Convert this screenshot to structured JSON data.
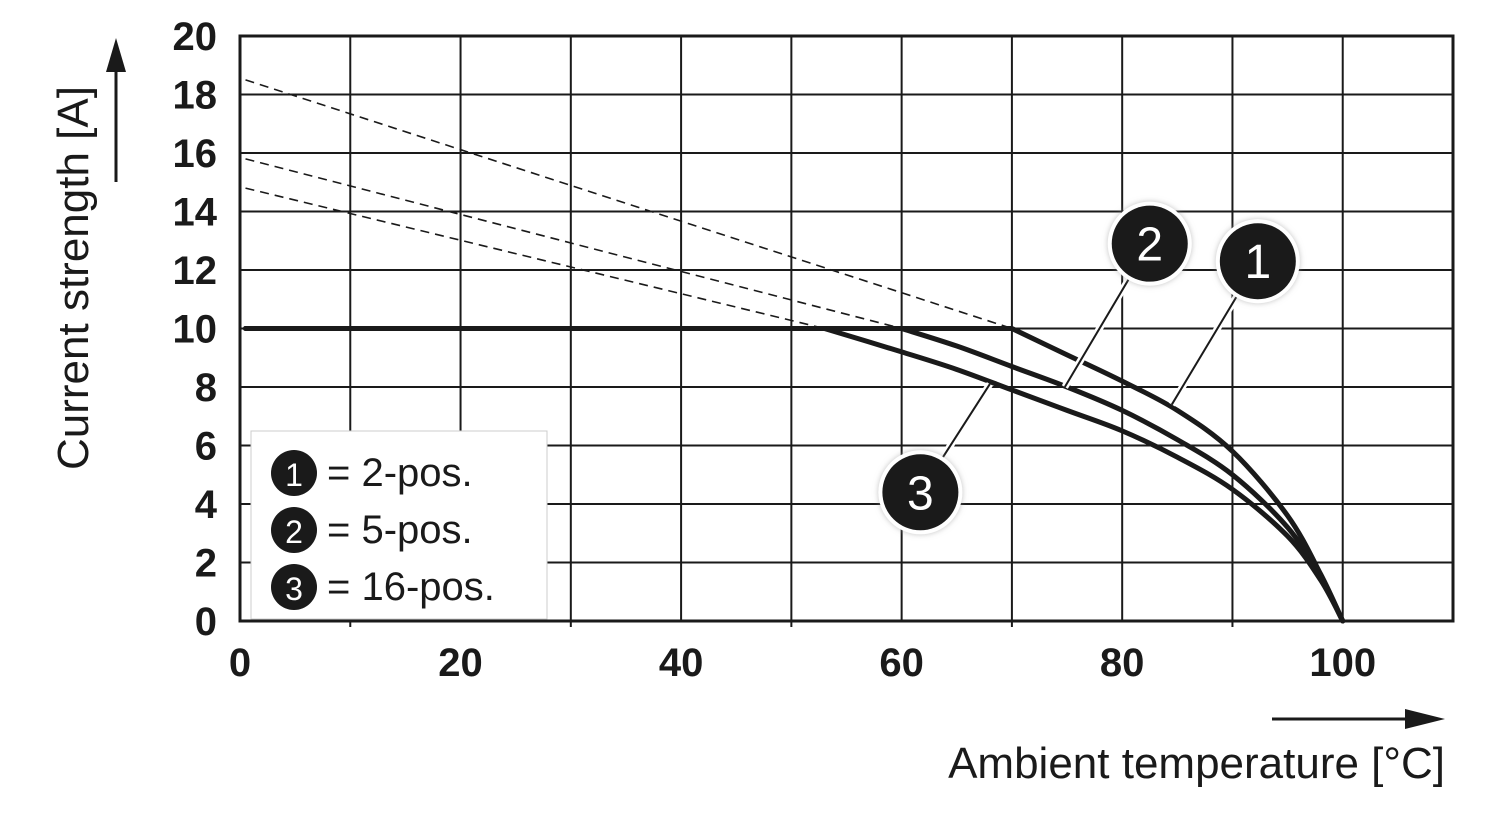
{
  "chart_data": {
    "type": "line",
    "xlabel": "Ambient temperature [°C]",
    "ylabel": "Current strength [A]",
    "xlim": [
      0,
      110
    ],
    "ylim": [
      0,
      20
    ],
    "x_ticks": [
      "0",
      "20",
      "40",
      "60",
      "80",
      "100"
    ],
    "y_ticks": [
      "0",
      "2",
      "4",
      "6",
      "8",
      "10",
      "12",
      "14",
      "16",
      "18",
      "20"
    ],
    "grid": true,
    "legend_position": "bottom-left",
    "series": [
      {
        "id": "1",
        "name": "2-pos.",
        "style": "solid",
        "points": [
          [
            0.5,
            10
          ],
          [
            70,
            10
          ],
          [
            75,
            9.1
          ],
          [
            80,
            8.2
          ],
          [
            85,
            7.2
          ],
          [
            90,
            5.8
          ],
          [
            95,
            3.6
          ],
          [
            98,
            1.6
          ],
          [
            100,
            0
          ]
        ]
      },
      {
        "id": "2",
        "name": "5-pos.",
        "style": "solid",
        "points": [
          [
            0.5,
            10
          ],
          [
            60,
            10
          ],
          [
            65,
            9.4
          ],
          [
            70,
            8.7
          ],
          [
            75,
            8.0
          ],
          [
            80,
            7.2
          ],
          [
            85,
            6.2
          ],
          [
            90,
            5.0
          ],
          [
            95,
            3.2
          ],
          [
            98,
            1.5
          ],
          [
            100,
            0
          ]
        ]
      },
      {
        "id": "3",
        "name": "16-pos.",
        "style": "solid",
        "points": [
          [
            0.5,
            10
          ],
          [
            53,
            10
          ],
          [
            60,
            9.2
          ],
          [
            65,
            8.6
          ],
          [
            70,
            7.9
          ],
          [
            75,
            7.2
          ],
          [
            80,
            6.5
          ],
          [
            85,
            5.6
          ],
          [
            90,
            4.5
          ],
          [
            95,
            2.9
          ],
          [
            98,
            1.4
          ],
          [
            100,
            0
          ]
        ]
      },
      {
        "id": "1-dashed",
        "style": "dashed",
        "points": [
          [
            0.5,
            18.5
          ],
          [
            70,
            10
          ]
        ]
      },
      {
        "id": "2-dashed",
        "style": "dashed",
        "points": [
          [
            0.5,
            15.8
          ],
          [
            60,
            10
          ]
        ]
      },
      {
        "id": "3-dashed",
        "style": "dashed",
        "points": [
          [
            0.5,
            14.8
          ],
          [
            53,
            10
          ]
        ]
      }
    ],
    "callouts": [
      {
        "label": "2",
        "badge": [
          82.5,
          12.9
        ],
        "pointer": [
          74.8,
          8.0
        ]
      },
      {
        "label": "1",
        "badge": [
          92.3,
          12.3
        ],
        "pointer": [
          84.5,
          7.4
        ]
      },
      {
        "label": "3",
        "badge": [
          61.7,
          4.4
        ],
        "pointer": [
          68,
          8.1
        ]
      }
    ],
    "legend": [
      {
        "label": "1",
        "text": "= 2-pos."
      },
      {
        "label": "2",
        "text": "= 5-pos."
      },
      {
        "label": "3",
        "text": "= 16-pos."
      }
    ],
    "colors": {
      "line": "#1a1a1a",
      "grid": "#1a1a1a",
      "badge_fill": "#1a1a1a",
      "badge_text": "#ffffff",
      "background": "#ffffff"
    }
  }
}
